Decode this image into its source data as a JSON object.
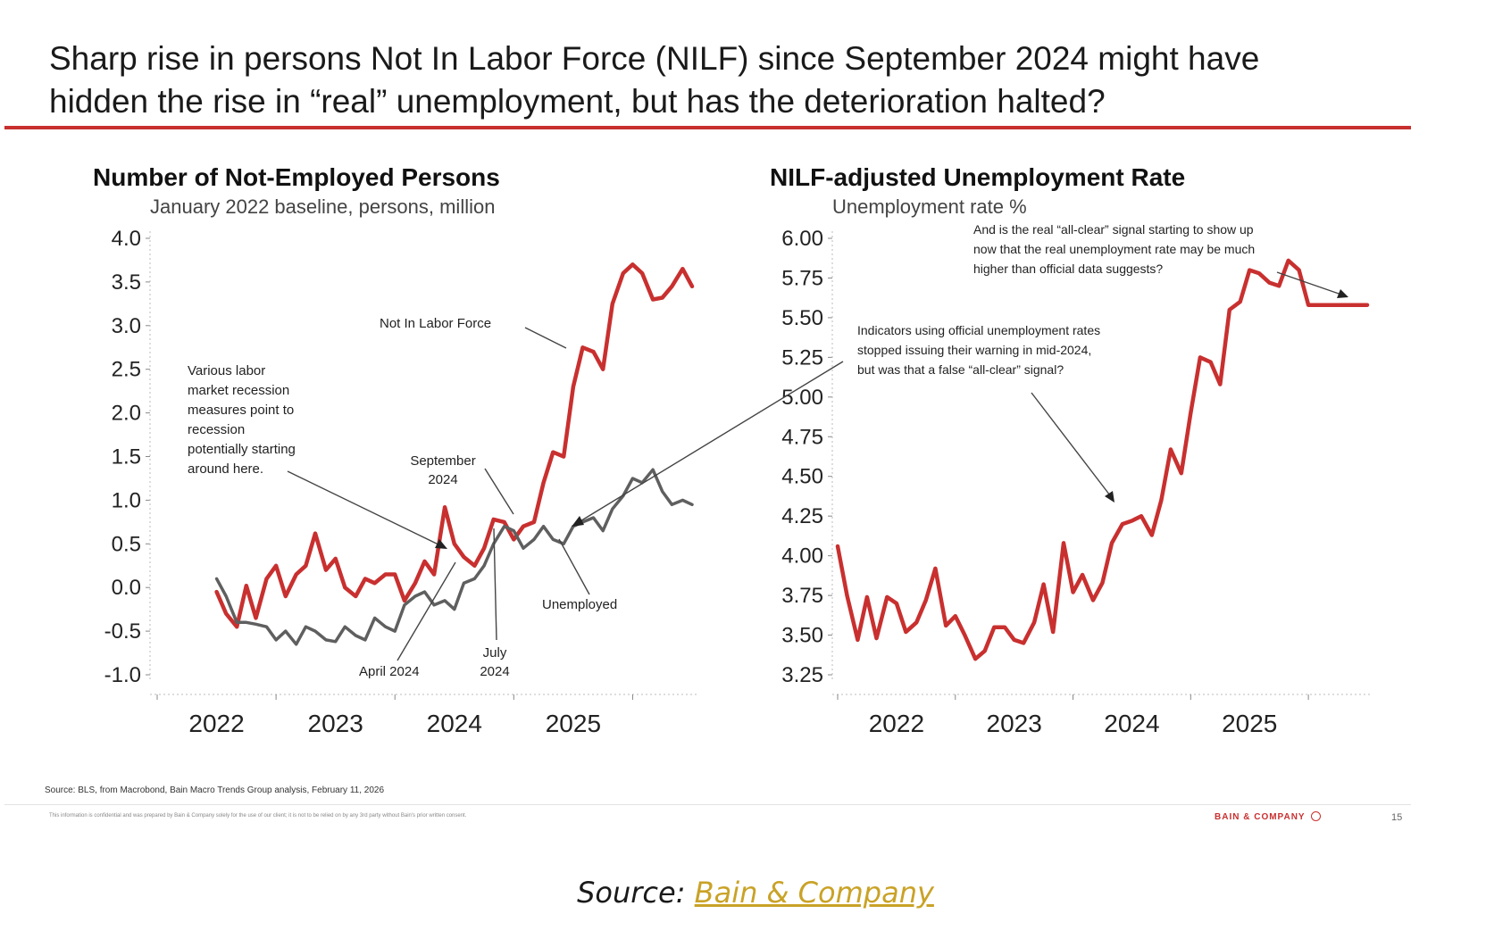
{
  "slide": {
    "headline_line1": "Sharp rise in persons Not In Labor Force (NILF) since September 2024 might have",
    "headline_line2": "hidden the rise in “real” unemployment, but has the deterioration halted?",
    "source_note": "Source: BLS, from Macrobond, Bain Macro Trends Group analysis, February 11, 2026",
    "confidential_note": "This information is confidential and was prepared by Bain & Company solely for the use of our client; it is not to be relied on by any 3rd party without Bain's prior written consent.",
    "brand": "BAIN & COMPANY",
    "page_number": "15",
    "accent_color": "#c8302f"
  },
  "caption": {
    "prefix": "Source: ",
    "link_text": "Bain & Company",
    "link_color": "#c9a227"
  },
  "chart_data": [
    {
      "type": "line",
      "title": "Number of Not-Employed Persons",
      "subtitle": "January 2022 baseline, persons, million",
      "ylim": [
        -1.0,
        4.0
      ],
      "xlim": [
        2021.5,
        2026.0
      ],
      "y_ticks": [
        "4.0",
        "3.5",
        "3.0",
        "2.5",
        "2.0",
        "1.5",
        "1.0",
        "0.5",
        "0.0",
        "-0.5",
        "-1.0"
      ],
      "x_ticks": [
        "2022",
        "2023",
        "2024",
        "2025"
      ],
      "grid": false,
      "series": [
        {
          "name": "Not In Labor Force",
          "color": "#c8302f",
          "x": [
            2022.0,
            2022.08,
            2022.17,
            2022.25,
            2022.33,
            2022.42,
            2022.5,
            2022.58,
            2022.67,
            2022.75,
            2022.83,
            2022.92,
            2023.0,
            2023.08,
            2023.17,
            2023.25,
            2023.33,
            2023.42,
            2023.5,
            2023.58,
            2023.67,
            2023.75,
            2023.83,
            2023.92,
            2024.0,
            2024.08,
            2024.17,
            2024.25,
            2024.33,
            2024.42,
            2024.5,
            2024.58,
            2024.67,
            2024.75,
            2024.83,
            2024.92,
            2025.0,
            2025.08,
            2025.17,
            2025.25,
            2025.33,
            2025.42,
            2025.5,
            2025.58,
            2025.67,
            2025.75,
            2025.83,
            2025.92,
            2026.0
          ],
          "values": [
            -0.05,
            -0.3,
            -0.45,
            0.02,
            -0.35,
            0.1,
            0.25,
            -0.1,
            0.15,
            0.25,
            0.62,
            0.2,
            0.33,
            0.0,
            -0.1,
            0.1,
            0.05,
            0.15,
            0.15,
            -0.15,
            0.05,
            0.3,
            0.15,
            0.92,
            0.5,
            0.35,
            0.25,
            0.45,
            0.78,
            0.75,
            0.55,
            0.7,
            0.75,
            1.2,
            1.55,
            1.5,
            2.3,
            2.75,
            2.7,
            2.5,
            3.25,
            3.6,
            3.7,
            3.6,
            3.3,
            3.32,
            3.45,
            3.65,
            3.45
          ]
        },
        {
          "name": "Unemployed",
          "color": "#5f5f5f",
          "x": [
            2022.0,
            2022.08,
            2022.17,
            2022.25,
            2022.33,
            2022.42,
            2022.5,
            2022.58,
            2022.67,
            2022.75,
            2022.83,
            2022.92,
            2023.0,
            2023.08,
            2023.17,
            2023.25,
            2023.33,
            2023.42,
            2023.5,
            2023.58,
            2023.67,
            2023.75,
            2023.83,
            2023.92,
            2024.0,
            2024.08,
            2024.17,
            2024.25,
            2024.33,
            2024.42,
            2024.5,
            2024.58,
            2024.67,
            2024.75,
            2024.83,
            2024.92,
            2025.0,
            2025.08,
            2025.17,
            2025.25,
            2025.33,
            2025.42,
            2025.5,
            2025.58,
            2025.67,
            2025.75,
            2025.83,
            2025.92,
            2026.0
          ],
          "values": [
            0.1,
            -0.1,
            -0.4,
            -0.4,
            -0.42,
            -0.45,
            -0.6,
            -0.5,
            -0.65,
            -0.45,
            -0.5,
            -0.6,
            -0.62,
            -0.45,
            -0.55,
            -0.6,
            -0.35,
            -0.45,
            -0.5,
            -0.2,
            -0.1,
            -0.05,
            -0.2,
            -0.15,
            -0.25,
            0.05,
            0.1,
            0.25,
            0.5,
            0.7,
            0.65,
            0.45,
            0.55,
            0.7,
            0.55,
            0.5,
            0.7,
            0.75,
            0.8,
            0.65,
            0.9,
            1.05,
            1.25,
            1.2,
            1.35,
            1.1,
            0.95,
            1.0,
            0.95
          ]
        }
      ],
      "series_labels": {
        "nilf": "Not In Labor Force",
        "unemployed": "Unemployed"
      },
      "annotations": {
        "recession_note": [
          "Various labor",
          "market recession",
          "measures point to",
          "recession",
          "potentially starting",
          "around here."
        ],
        "september_2024": [
          "September",
          "2024"
        ],
        "july_2024": [
          "July",
          "2024"
        ],
        "april_2024": "April 2024"
      }
    },
    {
      "type": "line",
      "title": "NILF-adjusted Unemployment Rate",
      "subtitle": "Unemployment rate %",
      "ylim": [
        3.25,
        6.0
      ],
      "xlim": [
        2021.5,
        2026.0
      ],
      "y_ticks": [
        "6.00",
        "5.75",
        "5.50",
        "5.25",
        "5.00",
        "4.75",
        "4.50",
        "4.25",
        "4.00",
        "3.75",
        "3.50",
        "3.25"
      ],
      "x_ticks": [
        "2022",
        "2023",
        "2024",
        "2025"
      ],
      "grid": false,
      "series": [
        {
          "color": "#c8302f",
          "x": [
            2021.5,
            2021.58,
            2021.67,
            2021.75,
            2021.83,
            2021.92,
            2022.0,
            2022.08,
            2022.17,
            2022.25,
            2022.33,
            2022.42,
            2022.5,
            2022.58,
            2022.67,
            2022.75,
            2022.83,
            2022.92,
            2023.0,
            2023.08,
            2023.17,
            2023.25,
            2023.33,
            2023.42,
            2023.5,
            2023.58,
            2023.67,
            2023.75,
            2023.83,
            2023.92,
            2024.0,
            2024.08,
            2024.17,
            2024.25,
            2024.33,
            2024.42,
            2024.5,
            2024.58,
            2024.67,
            2024.75,
            2024.83,
            2024.92,
            2025.0,
            2025.08,
            2025.17,
            2025.25,
            2025.33,
            2025.42,
            2025.5,
            2025.58,
            2025.67,
            2025.75,
            2025.83,
            2025.92,
            2026.0
          ],
          "values": [
            4.06,
            3.75,
            3.47,
            3.74,
            3.48,
            3.74,
            3.7,
            3.52,
            3.58,
            3.72,
            3.92,
            3.56,
            3.62,
            3.5,
            3.35,
            3.4,
            3.55,
            3.55,
            3.47,
            3.45,
            3.58,
            3.82,
            3.52,
            4.08,
            3.77,
            3.88,
            3.72,
            3.83,
            4.08,
            4.2,
            4.22,
            4.25,
            4.13,
            4.35,
            4.67,
            4.52,
            4.9,
            5.25,
            5.22,
            5.08,
            5.55,
            5.6,
            5.8,
            5.78,
            5.72,
            5.7,
            5.86,
            5.8,
            5.58,
            5.58,
            5.58,
            5.58,
            5.58,
            5.58,
            5.58
          ]
        }
      ],
      "annotations": {
        "indicators_note": [
          "Indicators using official unemployment rates",
          "stopped issuing their warning in mid-2024,",
          "but was that a false “all-clear” signal?"
        ],
        "all_clear_note": [
          "And is the real “all-clear” signal starting to show up",
          "now that the real unemployment rate may be much",
          "higher than official data suggests?"
        ]
      }
    }
  ]
}
